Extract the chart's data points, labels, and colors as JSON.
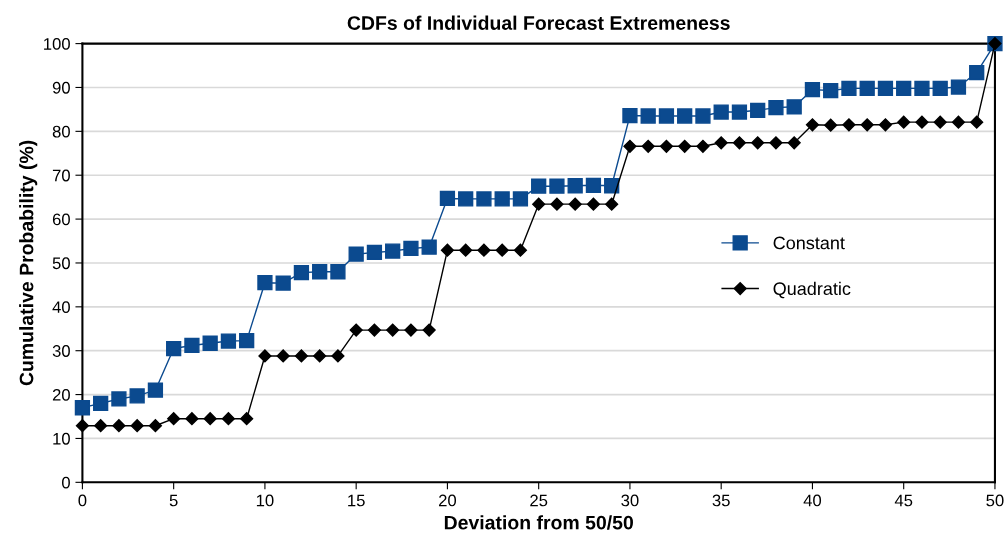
{
  "chart_data": {
    "type": "line",
    "title": "CDFs of Individual Forecast Extremeness",
    "xlabel": "Deviation from 50/50",
    "ylabel": "Cumulative Probability (%)",
    "x": [
      0,
      1,
      2,
      3,
      4,
      5,
      6,
      7,
      8,
      9,
      10,
      11,
      12,
      13,
      14,
      15,
      16,
      17,
      18,
      19,
      20,
      21,
      22,
      23,
      24,
      25,
      26,
      27,
      28,
      29,
      30,
      31,
      32,
      33,
      34,
      35,
      36,
      37,
      38,
      39,
      40,
      41,
      42,
      43,
      44,
      45,
      46,
      47,
      48,
      49,
      50
    ],
    "series": [
      {
        "name": "Constant",
        "color": "#0b4a8f",
        "marker": "square",
        "values": [
          17,
          18,
          19,
          19.7,
          21,
          30.5,
          31.2,
          31.7,
          32.2,
          32.3,
          45.5,
          45.4,
          47.8,
          48,
          48,
          52,
          52.4,
          52.7,
          53.3,
          53.6,
          64.7,
          64.6,
          64.6,
          64.6,
          64.6,
          67.5,
          67.5,
          67.6,
          67.7,
          67.6,
          83.6,
          83.5,
          83.5,
          83.5,
          83.5,
          84.4,
          84.4,
          84.8,
          85.4,
          85.6,
          89.5,
          89.3,
          89.8,
          89.8,
          89.8,
          89.8,
          89.8,
          89.8,
          90.1,
          93.4,
          100
        ]
      },
      {
        "name": "Quadratic",
        "color": "#000000",
        "marker": "diamond",
        "values": [
          12.9,
          12.9,
          12.9,
          12.9,
          12.9,
          14.5,
          14.5,
          14.5,
          14.5,
          14.5,
          28.8,
          28.8,
          28.8,
          28.8,
          28.8,
          34.7,
          34.7,
          34.7,
          34.7,
          34.7,
          52.9,
          52.9,
          52.9,
          52.9,
          52.9,
          63.4,
          63.4,
          63.4,
          63.4,
          63.4,
          76.6,
          76.6,
          76.6,
          76.6,
          76.6,
          77.4,
          77.4,
          77.4,
          77.4,
          77.4,
          81.5,
          81.4,
          81.5,
          81.5,
          81.5,
          82.1,
          82.1,
          82.1,
          82.1,
          82.1,
          100
        ]
      }
    ],
    "xlim": [
      0,
      50
    ],
    "xticks": [
      0,
      5,
      10,
      15,
      20,
      25,
      30,
      35,
      40,
      45,
      50
    ],
    "ylim": [
      0,
      100
    ],
    "yticks": [
      0,
      10,
      20,
      30,
      40,
      50,
      60,
      70,
      80,
      90,
      100
    ],
    "grid": "y",
    "legend": "right",
    "line_style": "solid"
  }
}
